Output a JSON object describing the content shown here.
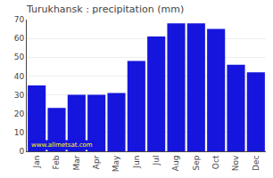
{
  "chart_data": {
    "type": "bar",
    "title": "Turukhansk : precipitation (mm)",
    "categories": [
      "Jan",
      "Feb",
      "Mar",
      "Apr",
      "May",
      "Jun",
      "Jul",
      "Aug",
      "Sep",
      "Oct",
      "Nov",
      "Dec"
    ],
    "values": [
      35,
      23,
      30,
      30,
      31,
      48,
      61,
      68,
      68,
      65,
      46,
      42
    ],
    "color": "#1515dd",
    "ylim": [
      0,
      70
    ],
    "yticks": [
      0,
      10,
      20,
      30,
      40,
      50,
      60,
      70
    ],
    "grid": true,
    "annotations": [
      {
        "text": "www.allmetsat.com",
        "color": "#ffff00"
      }
    ]
  }
}
